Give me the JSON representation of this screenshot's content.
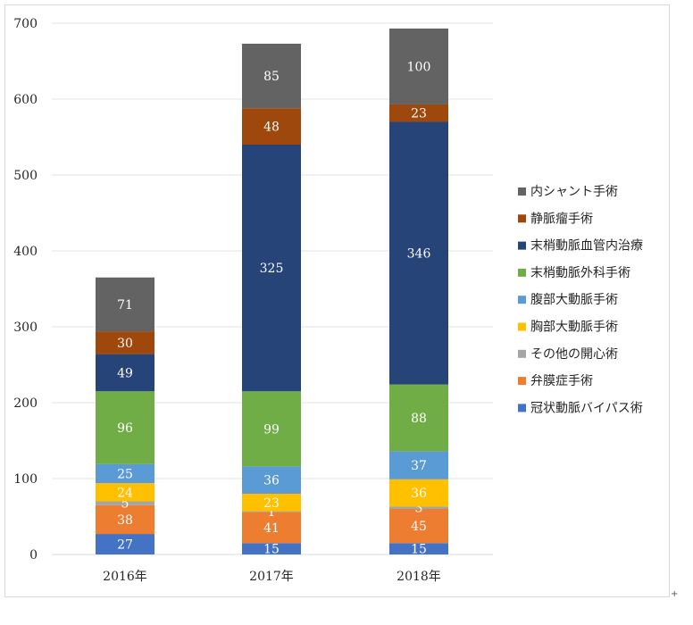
{
  "chart_data": {
    "type": "bar",
    "stacked": true,
    "categories": [
      "2016年",
      "2017年",
      "2018年"
    ],
    "ylim": [
      0,
      700
    ],
    "yticks": [
      0,
      100,
      200,
      300,
      400,
      500,
      600,
      700
    ],
    "grid": true,
    "legend_position": "right",
    "series": [
      {
        "name": "冠状動脈バイパス術",
        "color": "#4472c4",
        "values": [
          27,
          15,
          15
        ]
      },
      {
        "name": "弁膜症手術",
        "color": "#ed7d31",
        "values": [
          38,
          41,
          45
        ]
      },
      {
        "name": "その他の開心術",
        "color": "#a5a5a5",
        "values": [
          5,
          1,
          3
        ]
      },
      {
        "name": "胸部大動脈手術",
        "color": "#ffc000",
        "values": [
          24,
          23,
          36
        ]
      },
      {
        "name": "腹部大動脈手術",
        "color": "#5b9bd5",
        "values": [
          25,
          36,
          37
        ]
      },
      {
        "name": "末梢動脈外科手術",
        "color": "#70ad47",
        "values": [
          96,
          99,
          88
        ]
      },
      {
        "name": "末梢動脈血管内治療",
        "color": "#264478",
        "values": [
          49,
          325,
          346
        ]
      },
      {
        "name": "静脈瘤手術",
        "color": "#9e480e",
        "values": [
          30,
          48,
          23
        ]
      },
      {
        "name": "内シャント手術",
        "color": "#636363",
        "values": [
          71,
          85,
          100
        ]
      }
    ]
  }
}
